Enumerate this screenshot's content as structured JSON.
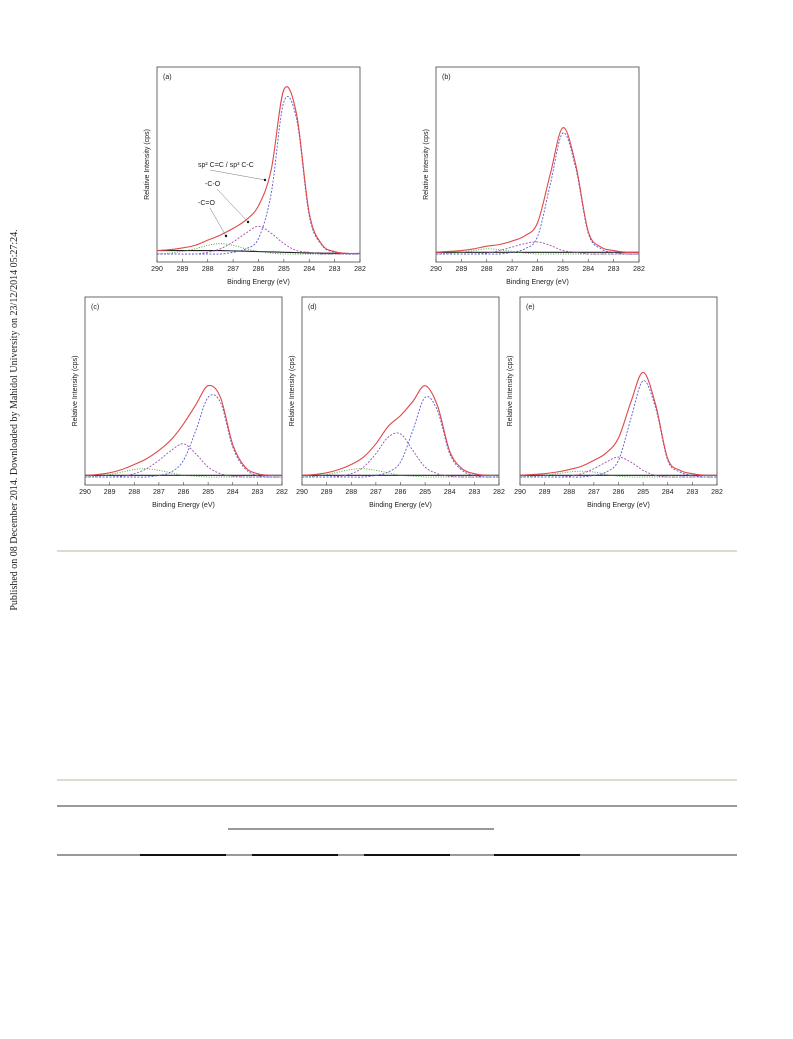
{
  "sidebar_text": "Published on 08 December 2014. Downloaded by Mahidol University on 23/12/2014 05:27:24.",
  "chart_data": [
    {
      "type": "line",
      "panel_label": "(a)",
      "x_label": "Binding Energy (eV)",
      "y_label": "Relative Intensity (cps)",
      "annotations": [
        "sp² C=C / sp³ C-C",
        "-C-O",
        "-C=O"
      ],
      "x": [
        290,
        289.5,
        289,
        288.5,
        288,
        287.5,
        287,
        286.5,
        286,
        285.5,
        285,
        284.5,
        284,
        283.5,
        283,
        282.5,
        282
      ],
      "xlim": [
        290,
        282
      ],
      "xticks": [
        290,
        289,
        288,
        287,
        286,
        285,
        284,
        283,
        282
      ],
      "ylim": [
        0,
        100
      ],
      "series": [
        {
          "color": "#222222",
          "style": "solid",
          "values": [
            2,
            2,
            2,
            2,
            2,
            2,
            1.8,
            1.6,
            1.4,
            1.2,
            1,
            0.8,
            0.6,
            0.5,
            0.4,
            0.3,
            0.3
          ]
        },
        {
          "color": "#3aa03a",
          "style": "dotted",
          "values": [
            0,
            0.5,
            1.5,
            3,
            5,
            6,
            5,
            3,
            1.5,
            0.5,
            0,
            0,
            0,
            0,
            0,
            0,
            0
          ]
        },
        {
          "color": "#a050b0",
          "style": "dashed",
          "values": [
            0,
            0,
            0,
            0,
            1,
            3,
            7,
            12,
            16,
            12,
            6,
            2,
            1,
            0,
            0,
            0,
            0
          ]
        },
        {
          "color": "#5a5ad0",
          "style": "dashed",
          "values": [
            0,
            0,
            0,
            0,
            0,
            0,
            1,
            3,
            9,
            35,
            88,
            78,
            22,
            5,
            1,
            0,
            0
          ]
        },
        {
          "color": "#e04848",
          "style": "solid",
          "values": [
            2,
            2.5,
            3.5,
            5,
            8,
            11,
            14.8,
            19.6,
            27.9,
            48.7,
            95,
            80.8,
            23.6,
            5.5,
            1.4,
            0.3,
            0.3
          ]
        }
      ]
    },
    {
      "type": "line",
      "panel_label": "(b)",
      "x_label": "Binding Energy (eV)",
      "y_label": "Relative Intensity (cps)",
      "x": [
        290,
        289.5,
        289,
        288.5,
        288,
        287.5,
        287,
        286.5,
        286,
        285.5,
        285,
        284.5,
        284,
        283.5,
        283,
        282.5,
        282
      ],
      "xlim": [
        290,
        282
      ],
      "xticks": [
        290,
        289,
        288,
        287,
        286,
        285,
        284,
        283,
        282
      ],
      "ylim": [
        0,
        100
      ],
      "series": [
        {
          "color": "#222222",
          "style": "solid",
          "values": [
            1,
            1,
            1,
            1,
            1,
            1,
            1,
            1,
            1,
            1,
            1,
            1,
            1,
            1,
            1,
            1,
            1
          ]
        },
        {
          "color": "#3aa03a",
          "style": "dotted",
          "values": [
            0,
            0.5,
            1,
            2,
            3,
            2.5,
            1.5,
            0.5,
            0,
            0,
            0,
            0,
            0,
            0,
            0,
            0,
            0
          ]
        },
        {
          "color": "#a050b0",
          "style": "dashed",
          "values": [
            0,
            0,
            0,
            0,
            0.5,
            2,
            4,
            6,
            7,
            5,
            2,
            1,
            0,
            0,
            0,
            0,
            0
          ]
        },
        {
          "color": "#5a5ad0",
          "style": "dashed",
          "values": [
            0,
            0,
            0,
            0,
            0,
            0,
            1,
            3,
            10,
            40,
            70,
            50,
            12,
            3,
            1,
            0,
            0
          ]
        },
        {
          "color": "#e04848",
          "style": "solid",
          "values": [
            1,
            1.5,
            2,
            3,
            4.5,
            5.5,
            7.5,
            10.5,
            18,
            46,
            73,
            52,
            13,
            4,
            2,
            1,
            1
          ]
        }
      ]
    },
    {
      "type": "line",
      "panel_label": "(c)",
      "x_label": "Binding Energy (eV)",
      "y_label": "Relative Intensity (cps)",
      "x": [
        290,
        289.5,
        289,
        288.5,
        288,
        287.5,
        287,
        286.5,
        286,
        285.5,
        285,
        284.5,
        284,
        283.5,
        283,
        282.5,
        282
      ],
      "xlim": [
        290,
        282
      ],
      "xticks": [
        290,
        289,
        288,
        287,
        286,
        285,
        284,
        283,
        282
      ],
      "ylim": [
        0,
        100
      ],
      "series": [
        {
          "color": "#222222",
          "style": "solid",
          "values": [
            1,
            1,
            1,
            1,
            1,
            1,
            1,
            1,
            1,
            1,
            1,
            1,
            1,
            1,
            1,
            1,
            1
          ]
        },
        {
          "color": "#3aa03a",
          "style": "dotted",
          "values": [
            0,
            0.5,
            1.5,
            3,
            4.5,
            5,
            4,
            2.5,
            1,
            0.5,
            0,
            0,
            0,
            0,
            0,
            0,
            0
          ]
        },
        {
          "color": "#a050b0",
          "style": "dashed",
          "values": [
            0,
            0,
            0,
            0.5,
            2,
            5,
            10,
            16,
            20,
            14,
            6,
            2,
            0.5,
            0,
            0,
            0,
            0
          ]
        },
        {
          "color": "#5a5ad0",
          "style": "dashed",
          "values": [
            0,
            0,
            0,
            0,
            0,
            0,
            1,
            3,
            10,
            28,
            48,
            45,
            18,
            5,
            1,
            0,
            0
          ]
        },
        {
          "color": "#e04848",
          "style": "solid",
          "values": [
            1,
            1.5,
            2.5,
            4.5,
            7.5,
            11,
            16,
            22.5,
            32,
            43.5,
            55,
            48,
            19.5,
            6,
            2,
            1,
            1
          ]
        }
      ]
    },
    {
      "type": "line",
      "panel_label": "(d)",
      "x_label": "Binding Energy (eV)",
      "y_label": "Relative Intensity (cps)",
      "x": [
        290,
        289.5,
        289,
        288.5,
        288,
        287.5,
        287,
        286.5,
        286,
        285.5,
        285,
        284.5,
        284,
        283.5,
        283,
        282.5,
        282
      ],
      "xlim": [
        290,
        282
      ],
      "xticks": [
        290,
        289,
        288,
        287,
        286,
        285,
        284,
        283,
        282
      ],
      "ylim": [
        0,
        100
      ],
      "series": [
        {
          "color": "#222222",
          "style": "solid",
          "values": [
            1,
            1,
            1,
            1,
            1,
            1,
            1,
            1,
            1,
            1,
            1,
            1,
            1,
            1,
            1,
            1,
            1
          ]
        },
        {
          "color": "#3aa03a",
          "style": "dotted",
          "values": [
            0,
            0.5,
            1.5,
            3,
            4.5,
            5,
            4,
            2.5,
            1,
            0.5,
            0,
            0,
            0,
            0,
            0,
            0,
            0
          ]
        },
        {
          "color": "#a050b0",
          "style": "dashed",
          "values": [
            0,
            0,
            0,
            0.5,
            2,
            6,
            14,
            24,
            26,
            16,
            6,
            2,
            0.5,
            0,
            0,
            0,
            0
          ]
        },
        {
          "color": "#5a5ad0",
          "style": "dashed",
          "values": [
            0,
            0,
            0,
            0,
            0,
            0,
            1,
            3,
            9,
            28,
            48,
            40,
            14,
            4,
            1,
            0,
            0
          ]
        },
        {
          "color": "#e04848",
          "style": "solid",
          "values": [
            1,
            1.5,
            2.5,
            4.5,
            7.5,
            12,
            20,
            30.5,
            37,
            45.5,
            55,
            43,
            15.5,
            5,
            2,
            1,
            1
          ]
        }
      ]
    },
    {
      "type": "line",
      "panel_label": "(e)",
      "x_label": "Binding Energy (eV)",
      "y_label": "Relative Intensity (cps)",
      "x": [
        290,
        289.5,
        289,
        288.5,
        288,
        287.5,
        287,
        286.5,
        286,
        285.5,
        285,
        284.5,
        284,
        283.5,
        283,
        282.5,
        282
      ],
      "xlim": [
        290,
        282
      ],
      "xticks": [
        290,
        289,
        288,
        287,
        286,
        285,
        284,
        283,
        282
      ],
      "ylim": [
        0,
        100
      ],
      "series": [
        {
          "color": "#222222",
          "style": "solid",
          "values": [
            1,
            1,
            1,
            1,
            1,
            1,
            1,
            1,
            1,
            1,
            1,
            1,
            1,
            1,
            1,
            1,
            1
          ]
        },
        {
          "color": "#3aa03a",
          "style": "dotted",
          "values": [
            0,
            0.5,
            1,
            2,
            3,
            3.5,
            3,
            1.5,
            0.5,
            0,
            0,
            0,
            0,
            0,
            0,
            0,
            0
          ]
        },
        {
          "color": "#a050b0",
          "style": "dashed",
          "values": [
            0,
            0,
            0,
            0,
            0.5,
            2,
            5,
            9,
            12,
            9,
            4,
            1,
            0,
            0,
            0,
            0,
            0
          ]
        },
        {
          "color": "#5a5ad0",
          "style": "dashed",
          "values": [
            0,
            0,
            0,
            0,
            0,
            0,
            1,
            3,
            10,
            35,
            58,
            42,
            10,
            3,
            1,
            0,
            0
          ]
        },
        {
          "color": "#e04848",
          "style": "solid",
          "values": [
            1,
            1.5,
            2,
            3,
            4.5,
            6.5,
            10,
            14.5,
            23.5,
            45,
            63,
            44,
            11,
            4,
            2,
            1,
            1
          ]
        }
      ]
    }
  ]
}
